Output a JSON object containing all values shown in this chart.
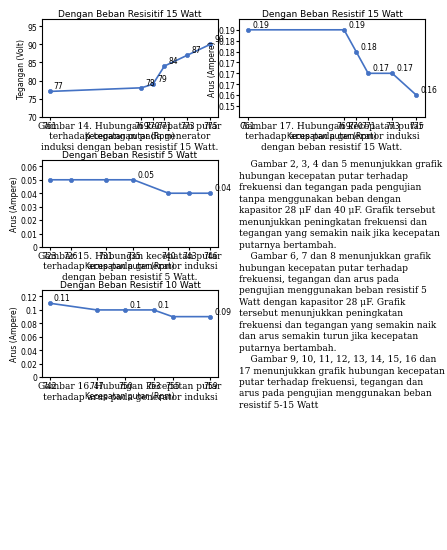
{
  "chart14": {
    "title": "Dengan Beban Resisitif 15 Watt",
    "xlabel": "Kecepatan putar (Rpm)",
    "ylabel": "Tegangan (Volt)",
    "x": [
      761,
      769,
      770,
      771,
      773,
      775
    ],
    "y": [
      77,
      78,
      79,
      84,
      87,
      90
    ],
    "labels": [
      "77",
      "78",
      "79",
      "84",
      "87",
      "90"
    ],
    "ylim": [
      70,
      97
    ],
    "yticks": [
      70,
      75,
      80,
      85,
      90,
      95
    ],
    "caption": "Gambar 14. Hubungan kecepatan putar\nterhadap tegangan pada generator\ninduksi dengan beban resistif 15 Watt."
  },
  "chart15": {
    "title": "Dengan Beban Resistif 5 Watt",
    "xlabel": "Kecepatan putar (Rpm)",
    "ylabel": "Arus (Ampere)",
    "x": [
      723,
      726,
      731,
      735,
      740,
      743,
      746
    ],
    "y": [
      0.05,
      0.05,
      0.05,
      0.05,
      0.04,
      0.04,
      0.04
    ],
    "labels": [
      "",
      "",
      "",
      "0.05",
      "",
      "",
      "0.04"
    ],
    "ylim": [
      0,
      0.065
    ],
    "yticks": [
      0,
      0.01,
      0.02,
      0.03,
      0.04,
      0.05,
      0.06
    ],
    "caption": "Gambar 15. Hubungan kecepatan putar\nterhadap arus pada generator induksi\ndengan beban resistif 5 Watt."
  },
  "chart16": {
    "title": "Dengan Beban Resistif 10 Watt",
    "xlabel": "Kecepatan putar (Rpm)",
    "ylabel": "Arus (Ampere)",
    "x": [
      742,
      747,
      750,
      753,
      755,
      759
    ],
    "y": [
      0.11,
      0.1,
      0.1,
      0.1,
      0.09,
      0.09
    ],
    "labels": [
      "0.11",
      "",
      "0.1",
      "0.1",
      "",
      "0.09"
    ],
    "ylim": [
      0,
      0.13
    ],
    "yticks": [
      0,
      0.02,
      0.04,
      0.06,
      0.08,
      0.1,
      0.12
    ],
    "caption": "Gambar 16. Hubungan kecepatan putar\nterhadap arus pada generator induksi"
  },
  "chart17": {
    "title": "Dengan Beban Resistif 15 Watt",
    "xlabel": "Kecepatan putar (Rpm)",
    "ylabel": "Arus (Ampere)",
    "x": [
      761,
      769,
      770,
      771,
      773,
      775
    ],
    "y": [
      0.19,
      0.19,
      0.18,
      0.17,
      0.17,
      0.16
    ],
    "labels": [
      "0.19",
      "0.19",
      "0.18",
      "0.17",
      "0.17",
      "0.16"
    ],
    "ylim": [
      0.15,
      0.195
    ],
    "yticks": [
      0.155,
      0.16,
      0.165,
      0.17,
      0.175,
      0.18,
      0.185,
      0.19
    ],
    "caption": "Gambar 17. Hubungan kecepatan putar\nterhadap arus pada generator induksi\ndengan beban resistif 15 Watt."
  },
  "text_paragraphs": [
    "    Gambar 2, 3, 4 dan 5 menunjukkan grafik hubungan kecepatan putar terhadap frekuensi dan tegangan pada pengujian tanpa menggunakan beban dengan kapasitor 28 μF dan 40 μF. Grafik tersebut menunjukkan peningkatan frekuensi dan tegangan yang semakin naik jika kecepatan putarnya bertambah.",
    "    Gambar 6, 7 dan 8 menunjukkan grafik hubungan kecepatan putar terhadap frekuensi, tegangan dan arus pada pengujian menggunakan beban resistif 5 Watt dengan kapasitor 28 μF. Grafik tersebut menunjukkan peningkatan frekuensi dan tegangan yang semakin naik dan arus semakin turun jika kecepatan putarnya bertambah.",
    "    Gambar 9, 10, 11, 12, 13, 14, 15, 16 dan 17 menunjukkan grafik hubungan kecepatan putar terhadap frekuensi, tegangan dan arus pada pengujian menggunakan beban resistif 5-15 Watt"
  ],
  "line_color": "#4472C4",
  "marker": "o",
  "marker_size": 3,
  "line_width": 1.2,
  "font_size_title": 6.5,
  "font_size_label": 5.5,
  "font_size_tick": 5.5,
  "font_size_annot": 5.5,
  "font_size_caption": 6.5,
  "font_size_body": 6.5
}
